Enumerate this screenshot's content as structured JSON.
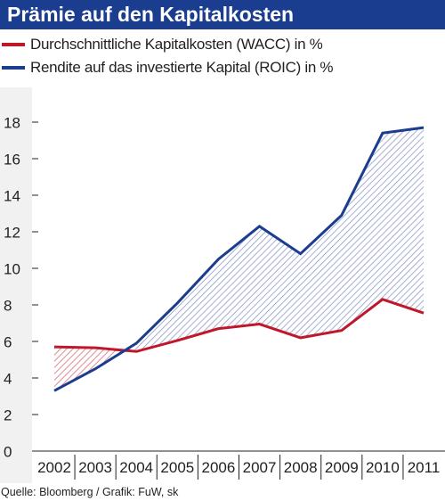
{
  "title": "Prämie auf den Kapitalkosten",
  "source": "Quelle: Bloomberg / Grafik: FuW, sk",
  "colors": {
    "title_bg": "#1b3d8f",
    "wacc": "#c0182b",
    "roic": "#1b3d8f",
    "hatch_blue": "#8e9ac6",
    "hatch_red": "#d9707b",
    "panel_bg": "#ffffff",
    "axis_bg": "#f1f1f1"
  },
  "chart_data": {
    "type": "line",
    "x": [
      "2002",
      "2003",
      "2004",
      "2005",
      "2006",
      "2007",
      "2008",
      "2009",
      "2010",
      "2011"
    ],
    "series": [
      {
        "name": "Durchschnittliche Kapitalkosten (WACC) in %",
        "values": [
          5.7,
          5.65,
          5.45,
          6.05,
          6.7,
          6.95,
          6.2,
          6.6,
          8.3,
          7.55
        ]
      },
      {
        "name": "Rendite auf das investierte Kapital (ROIC) in %",
        "values": [
          3.3,
          4.5,
          5.9,
          8.1,
          10.5,
          12.3,
          10.8,
          12.9,
          17.4,
          17.7
        ]
      }
    ],
    "yticks": [
      "0",
      "2",
      "4",
      "6",
      "8",
      "10",
      "12",
      "14",
      "16",
      "18"
    ],
    "ylim": [
      0,
      19
    ],
    "grid": false,
    "legend": "top-left"
  }
}
